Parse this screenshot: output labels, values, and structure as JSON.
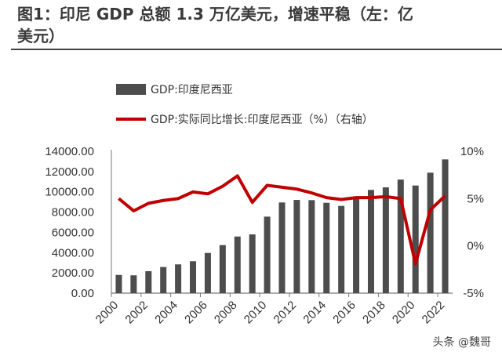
{
  "title": "图1：印尼 GDP 总额 1.3 万亿美元，增速平稳（左：亿美元）",
  "title_line1": "图1：印尼 GDP 总额 1.3 万亿美元，增速平稳（左：亿",
  "title_line2": "美元）",
  "watermark": "头条 @魏哥",
  "chart_data": {
    "type": "bar+line",
    "categories": [
      "2000",
      "2001",
      "2002",
      "2003",
      "2004",
      "2005",
      "2006",
      "2007",
      "2008",
      "2009",
      "2010",
      "2011",
      "2012",
      "2013",
      "2014",
      "2015",
      "2016",
      "2017",
      "2018",
      "2019",
      "2020",
      "2021",
      "2022"
    ],
    "x_tick_labels": [
      "2000",
      "2002",
      "2004",
      "2006",
      "2008",
      "2010",
      "2012",
      "2014",
      "2016",
      "2018",
      "2020",
      "2022"
    ],
    "series": [
      {
        "name": "GDP:印度尼西亚",
        "type": "bar",
        "axis": "left",
        "color": "#4d4d4d",
        "values": [
          1800,
          1760,
          2170,
          2580,
          2840,
          3150,
          3970,
          4740,
          5590,
          5800,
          7550,
          8950,
          9200,
          9180,
          8920,
          8610,
          9330,
          10190,
          10440,
          11210,
          10620,
          11890,
          13200
        ]
      },
      {
        "name": "GDP:实际同比增长:印度尼西亚（%）（右轴）",
        "type": "line",
        "axis": "right",
        "color": "#c00000",
        "values": [
          5.0,
          3.7,
          4.5,
          4.8,
          5.0,
          5.7,
          5.5,
          6.3,
          7.4,
          4.6,
          6.4,
          6.2,
          6.0,
          5.6,
          5.1,
          4.9,
          5.1,
          5.1,
          5.2,
          5.0,
          -1.9,
          3.8,
          5.3
        ]
      }
    ],
    "left_axis": {
      "ylim": [
        0,
        14000
      ],
      "tick_labels": [
        "0.00",
        "2000.00",
        "4000.00",
        "6000.00",
        "8000.00",
        "10000.00",
        "12000.00",
        "14000.00"
      ],
      "ticks": [
        0,
        2000,
        4000,
        6000,
        8000,
        10000,
        12000,
        14000
      ]
    },
    "right_axis": {
      "ylim": [
        -5,
        10
      ],
      "tick_labels": [
        "-5%",
        "0%",
        "5%",
        "10%"
      ],
      "ticks": [
        -5,
        0,
        5,
        10
      ]
    },
    "grid": false,
    "legend_placement": "top-left"
  }
}
